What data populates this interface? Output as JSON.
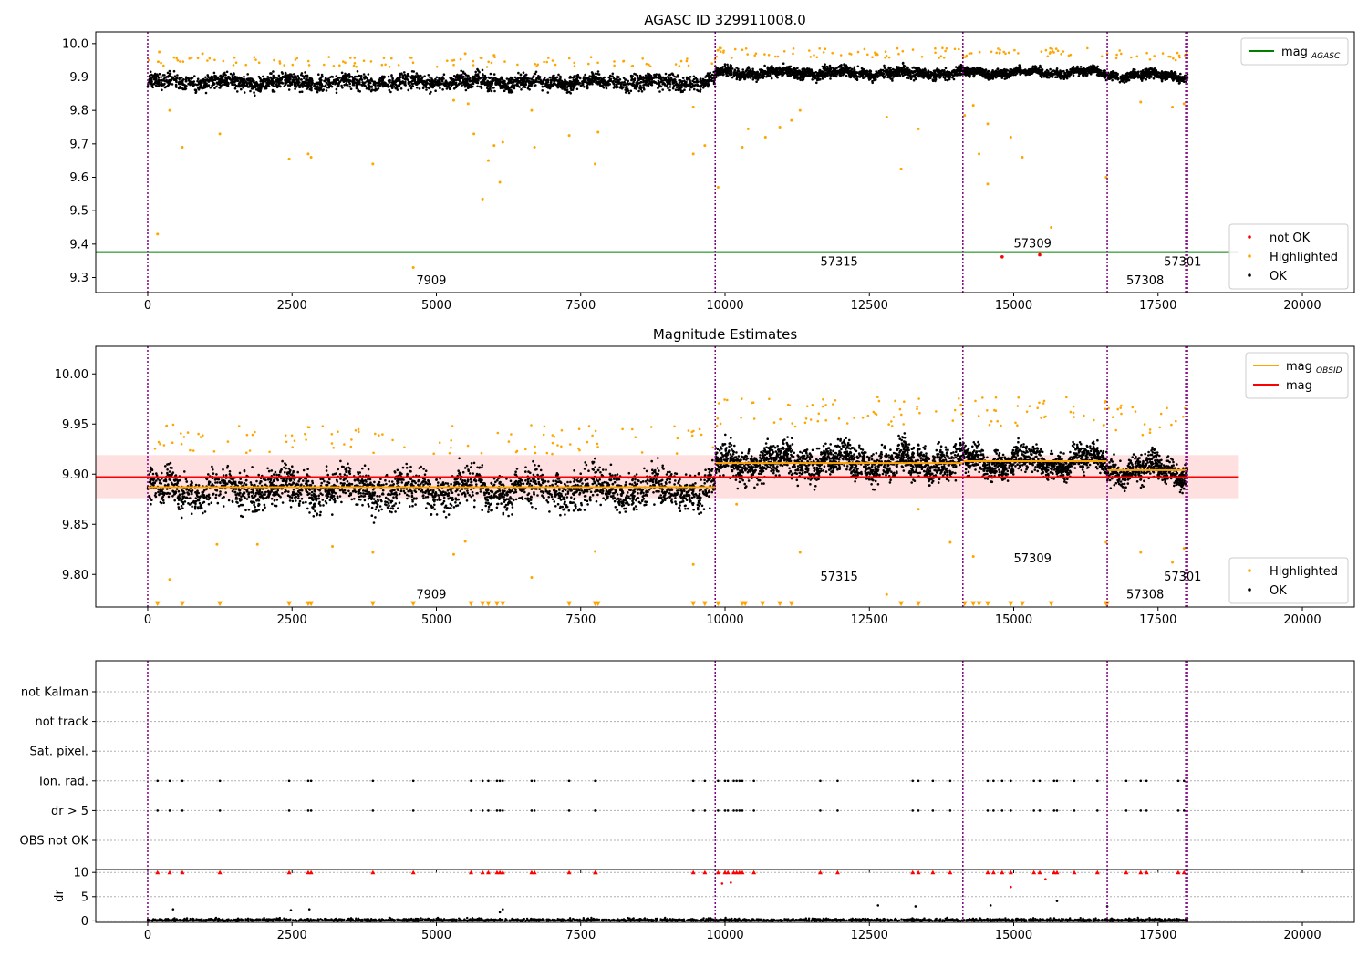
{
  "figure": {
    "title_top": "AGASC ID 329911008.0",
    "title_mid": "Magnitude Estimates"
  },
  "colors": {
    "ok": "#000000",
    "highlighted": "#ffa500",
    "not_ok": "#ff0000",
    "agasc_line": "#008000",
    "mag_line": "#ff0000",
    "mag_band": "#ffdddd",
    "obsid_line": "#ffa500",
    "obsid_boundary": "#800080",
    "flag_dr_marker": "#ff0000"
  },
  "chart_data": [
    {
      "id": "agasc",
      "type": "scatter",
      "title": "AGASC ID 329911008.0",
      "xlim": [
        -900,
        20900
      ],
      "ylim": [
        9.255,
        10.035
      ],
      "xticks": [
        0,
        2500,
        5000,
        7500,
        10000,
        12500,
        15000,
        17500,
        20000
      ],
      "yticks": [
        9.3,
        9.4,
        9.5,
        9.6,
        9.7,
        9.8,
        9.9,
        10.0
      ],
      "ytick_labels": [
        "9.3",
        "9.4",
        "9.5",
        "9.6",
        "9.7",
        "9.8",
        "9.9",
        "10.0"
      ],
      "legend_upper": {
        "location": "upper right",
        "entries": [
          {
            "label": "mag",
            "sub": "AGASC",
            "kind": "line",
            "color_key": "agasc_line"
          }
        ]
      },
      "legend_lower": {
        "location": "lower right",
        "entries": [
          {
            "label": "not OK",
            "kind": "point",
            "color_key": "not_ok"
          },
          {
            "label": "Highlighted",
            "kind": "point",
            "color_key": "highlighted"
          },
          {
            "label": "OK",
            "kind": "point",
            "color_key": "ok"
          }
        ]
      },
      "agasc_mag": 9.376,
      "agasc_line_x": [
        -900,
        18900
      ],
      "obsid_boundaries": [
        0,
        9830,
        14120,
        16620,
        17980,
        18010
      ],
      "obsid_labels": [
        {
          "text": "7909",
          "x": 4650,
          "y": 9.28
        },
        {
          "text": "57315",
          "x": 11650,
          "y": 9.336
        },
        {
          "text": "57309",
          "x": 15000,
          "y": 9.39
        },
        {
          "text": "57308",
          "x": 16950,
          "y": 9.28
        },
        {
          "text": "57301",
          "x": 17600,
          "y": 9.336
        }
      ],
      "segments": [
        {
          "x_range": [
            0,
            9830
          ],
          "mean": 9.885,
          "spread": 0.022,
          "n_points": 2600
        },
        {
          "x_range": [
            9830,
            14120
          ],
          "mean": 9.912,
          "spread": 0.016,
          "n_points": 1500
        },
        {
          "x_range": [
            14120,
            16620
          ],
          "mean": 9.913,
          "spread": 0.012,
          "n_points": 900
        },
        {
          "x_range": [
            16620,
            18010
          ],
          "mean": 9.905,
          "spread": 0.013,
          "n_points": 500
        }
      ],
      "highlighted_points": [
        [
          170,
          9.43
        ],
        [
          380,
          9.8
        ],
        [
          600,
          9.69
        ],
        [
          1250,
          9.73
        ],
        [
          2450,
          9.655
        ],
        [
          2780,
          9.67
        ],
        [
          2830,
          9.66
        ],
        [
          3900,
          9.64
        ],
        [
          4600,
          9.33
        ],
        [
          5300,
          9.83
        ],
        [
          5550,
          9.82
        ],
        [
          5650,
          9.73
        ],
        [
          5800,
          9.535
        ],
        [
          5900,
          9.65
        ],
        [
          6000,
          9.695
        ],
        [
          6100,
          9.585
        ],
        [
          6150,
          9.705
        ],
        [
          6700,
          9.69
        ],
        [
          6650,
          9.8
        ],
        [
          7300,
          9.725
        ],
        [
          7750,
          9.64
        ],
        [
          7800,
          9.735
        ],
        [
          9450,
          9.67
        ],
        [
          9450,
          9.81
        ],
        [
          9650,
          9.695
        ],
        [
          9880,
          9.57
        ],
        [
          10300,
          9.69
        ],
        [
          10400,
          9.745
        ],
        [
          10700,
          9.72
        ],
        [
          10950,
          9.75
        ],
        [
          11150,
          9.77
        ],
        [
          11300,
          9.8
        ],
        [
          12800,
          9.78
        ],
        [
          13050,
          9.625
        ],
        [
          13350,
          9.745
        ],
        [
          14150,
          9.785
        ],
        [
          14300,
          9.815
        ],
        [
          14400,
          9.67
        ],
        [
          14550,
          9.58
        ],
        [
          14550,
          9.76
        ],
        [
          14950,
          9.72
        ],
        [
          15150,
          9.66
        ],
        [
          15650,
          9.45
        ],
        [
          16600,
          9.6
        ],
        [
          17200,
          9.825
        ],
        [
          17750,
          9.81
        ],
        [
          17950,
          9.82
        ],
        [
          200,
          9.975
        ],
        [
          950,
          9.97
        ],
        [
          5500,
          9.97
        ],
        [
          6000,
          9.965
        ]
      ],
      "not_ok_points": [
        [
          14800,
          9.362
        ],
        [
          15450,
          9.368
        ]
      ]
    },
    {
      "id": "estimates",
      "type": "scatter",
      "title": "Magnitude Estimates",
      "xlim": [
        -900,
        20900
      ],
      "ylim": [
        9.7675,
        10.0275
      ],
      "xticks": [
        0,
        2500,
        5000,
        7500,
        10000,
        12500,
        15000,
        17500,
        20000
      ],
      "yticks": [
        9.8,
        9.85,
        9.9,
        9.95,
        10.0
      ],
      "ytick_labels": [
        "9.80",
        "9.85",
        "9.90",
        "9.95",
        "10.00"
      ],
      "legend_upper": {
        "location": "upper right",
        "entries": [
          {
            "label": "mag",
            "sub": "OBSID",
            "kind": "line",
            "color_key": "obsid_line"
          },
          {
            "label": "mag",
            "sub": "",
            "kind": "line",
            "color_key": "mag_line"
          }
        ]
      },
      "legend_lower": {
        "location": "lower right",
        "entries": [
          {
            "label": "Highlighted",
            "kind": "point",
            "color_key": "highlighted"
          },
          {
            "label": "OK",
            "kind": "point",
            "color_key": "ok"
          }
        ]
      },
      "mag": 9.897,
      "mag_band": [
        9.876,
        9.919
      ],
      "mag_line_x": [
        -900,
        18900
      ],
      "obsid_mags": [
        {
          "x_range": [
            0,
            9830
          ],
          "mag": 9.887
        },
        {
          "x_range": [
            9830,
            14120
          ],
          "mag": 9.911
        },
        {
          "x_range": [
            14120,
            16620
          ],
          "mag": 9.913
        },
        {
          "x_range": [
            16620,
            18010
          ],
          "mag": 9.904
        }
      ],
      "obsid_boundaries": [
        0,
        9830,
        14120,
        16620,
        17980,
        18010
      ],
      "obsid_labels": [
        {
          "text": "7909",
          "x": 4650,
          "y": 9.776
        },
        {
          "text": "57315",
          "x": 11650,
          "y": 9.794
        },
        {
          "text": "57309",
          "x": 15000,
          "y": 9.812
        },
        {
          "text": "57308",
          "x": 16950,
          "y": 9.776
        },
        {
          "text": "57301",
          "x": 17600,
          "y": 9.794
        }
      ],
      "segments": [
        {
          "x_range": [
            0,
            9830
          ],
          "mean": 9.885,
          "spread": 0.018,
          "n_points": 2600
        },
        {
          "x_range": [
            9830,
            14120
          ],
          "mean": 9.912,
          "spread": 0.016,
          "n_points": 1500
        },
        {
          "x_range": [
            14120,
            16620
          ],
          "mean": 9.912,
          "spread": 0.013,
          "n_points": 900
        },
        {
          "x_range": [
            16620,
            18010
          ],
          "mean": 9.904,
          "spread": 0.013,
          "n_points": 500
        }
      ],
      "highlighted_points": [
        [
          380,
          9.795
        ],
        [
          1200,
          9.83
        ],
        [
          1900,
          9.83
        ],
        [
          3200,
          9.828
        ],
        [
          3900,
          9.822
        ],
        [
          5300,
          9.82
        ],
        [
          5500,
          9.833
        ],
        [
          6650,
          9.797
        ],
        [
          7750,
          9.823
        ],
        [
          9450,
          9.81
        ],
        [
          10200,
          9.87
        ],
        [
          11300,
          9.822
        ],
        [
          12800,
          9.78
        ],
        [
          13350,
          9.865
        ],
        [
          13900,
          9.832
        ],
        [
          14300,
          9.818
        ],
        [
          16600,
          9.832
        ],
        [
          17200,
          9.822
        ],
        [
          17750,
          9.812
        ],
        [
          17950,
          9.826
        ]
      ],
      "low_markers_x": [
        170,
        600,
        1250,
        2450,
        2780,
        2830,
        3900,
        4600,
        5600,
        5800,
        5900,
        6050,
        6150,
        7300,
        7750,
        7800,
        9450,
        9650,
        9880,
        10300,
        10350,
        10650,
        10950,
        11150,
        13050,
        13350,
        14150,
        14300,
        14400,
        14550,
        14950,
        15150,
        15650,
        16600,
        16620
      ],
      "low_marker_y": 9.771
    },
    {
      "id": "flags",
      "type": "scatter",
      "xlim": [
        -900,
        20900
      ],
      "xticks": [
        0,
        2500,
        5000,
        7500,
        10000,
        12500,
        15000,
        17500,
        20000
      ],
      "flag_rows": [
        "not Kalman",
        "not track",
        "Sat. pixel.",
        "Ion. rad.",
        "dr > 5",
        "OBS not OK"
      ],
      "flag_points_x": [
        170,
        380,
        600,
        1250,
        2450,
        2780,
        2830,
        3900,
        4600,
        5600,
        5800,
        5900,
        6050,
        6100,
        6150,
        6650,
        6700,
        7300,
        7750,
        7760,
        9450,
        9650,
        9880,
        10000,
        10050,
        10150,
        10200,
        10250,
        10300,
        10500,
        11650,
        11950,
        13250,
        13350,
        13600,
        13900,
        14550,
        14650,
        14800,
        14950,
        15350,
        15450,
        15700,
        15750,
        16050,
        16450,
        16950,
        17200,
        17300,
        17850,
        17950
      ],
      "obsid_boundaries": [
        0,
        9830,
        14120,
        16620,
        17980,
        18010
      ]
    },
    {
      "id": "dr",
      "type": "scatter",
      "ylabel": "dr",
      "xlim": [
        -900,
        20900
      ],
      "ylim": [
        -0.3,
        10.6
      ],
      "xticks": [
        0,
        2500,
        5000,
        7500,
        10000,
        12500,
        15000,
        17500,
        20000
      ],
      "xtick_labels": [
        "0",
        "2500",
        "5000",
        "7500",
        "10000",
        "12500",
        "15000",
        "17500",
        "20000"
      ],
      "yticks": [
        0,
        5,
        10
      ],
      "ytick_labels": [
        "0",
        "5",
        "10"
      ],
      "clipped_value": 10,
      "typical_range": [
        0,
        0.8
      ],
      "outliers": [
        [
          440,
          2.4
        ],
        [
          2480,
          2.2
        ],
        [
          2800,
          2.4
        ],
        [
          6100,
          1.8
        ],
        [
          6150,
          2.4
        ],
        [
          9950,
          7.7
        ],
        [
          10100,
          7.9
        ],
        [
          12650,
          3.2
        ],
        [
          13300,
          3.0
        ],
        [
          14600,
          3.2
        ],
        [
          14950,
          7.0
        ],
        [
          15550,
          8.6
        ],
        [
          15750,
          4.1
        ],
        [
          16620,
          3.0
        ]
      ],
      "obsid_boundaries": [
        0,
        9830,
        14120,
        16620,
        17980,
        18010
      ]
    }
  ]
}
